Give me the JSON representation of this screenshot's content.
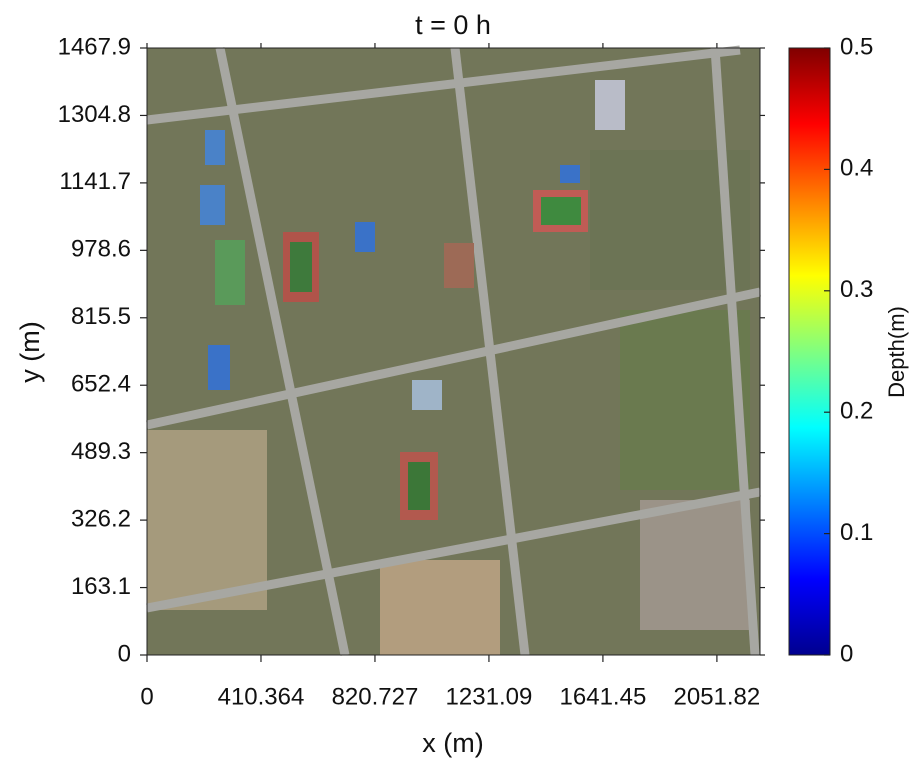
{
  "chart_data": {
    "type": "map",
    "title": "t = 0 h",
    "x_label": "x (m)",
    "y_label": "y (m)",
    "xlim": [
      0,
      2207
    ],
    "xticks": [
      0,
      410.364,
      820.727,
      1231.09,
      1641.45,
      2051.82
    ],
    "ylim": [
      0,
      1467.9
    ],
    "yticks": [
      0,
      163.1,
      326.2,
      489.3,
      652.4,
      815.5,
      978.6,
      1141.7,
      1304.8,
      1467.9
    ],
    "colorbar": {
      "label": "Depth(m)",
      "clim": [
        0,
        0.5
      ],
      "ticks": [
        0,
        0.1,
        0.2,
        0.3,
        0.4,
        0.5
      ],
      "colormap": [
        "#00008f",
        "#0000ff",
        "#0080ff",
        "#00ffff",
        "#80ff80",
        "#ffff00",
        "#ff8000",
        "#ff0000",
        "#800000"
      ]
    }
  }
}
